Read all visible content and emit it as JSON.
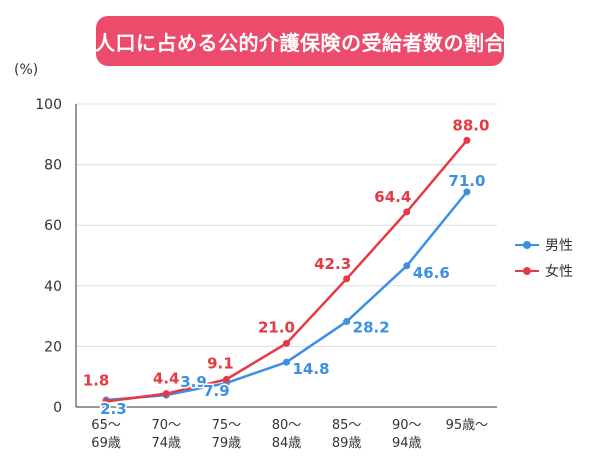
{
  "header": {
    "title": "人口に占める公的介護保険の受給者数の割合",
    "accent": "#ec4b6b"
  },
  "chart_data": {
    "type": "line",
    "title": "人口に占める公的介護保険の受給者数の割合",
    "unit_label": "(%)",
    "categories": [
      [
        "65～",
        "69歳"
      ],
      [
        "70～",
        "74歳"
      ],
      [
        "75～",
        "79歳"
      ],
      [
        "80～",
        "84歳"
      ],
      [
        "85～",
        "89歳"
      ],
      [
        "90～",
        "94歳"
      ],
      [
        "95歳～",
        ""
      ]
    ],
    "series": [
      {
        "name": "男性",
        "color": "#3b8fe4",
        "values": [
          2.3,
          3.9,
          7.9,
          14.8,
          28.2,
          46.6,
          71.0
        ]
      },
      {
        "name": "女性",
        "color": "#e53a43",
        "values": [
          1.8,
          4.4,
          9.1,
          21.0,
          42.3,
          64.4,
          88.0
        ]
      }
    ],
    "ylim": [
      0,
      100
    ],
    "yticks": [
      0,
      20,
      40,
      60,
      80,
      100
    ],
    "grid": true,
    "legend_position": "right"
  }
}
